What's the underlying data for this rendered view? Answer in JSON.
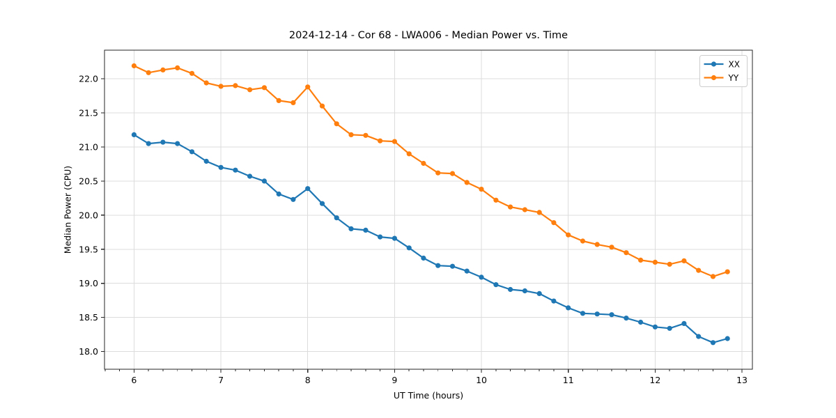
{
  "chart_data": {
    "type": "line",
    "title": "2024-12-14 - Cor 68 - LWA006 - Median Power vs. Time",
    "xlabel": "UT Time (hours)",
    "ylabel": "Median Power (CPU)",
    "xlim": [
      5.66,
      13.12
    ],
    "ylim": [
      17.74,
      22.42
    ],
    "x_major_ticks": [
      6,
      7,
      8,
      9,
      10,
      11,
      12,
      13
    ],
    "x_minor_step": 0.1667,
    "y_ticks": [
      18.0,
      18.5,
      19.0,
      19.5,
      20.0,
      20.5,
      21.0,
      21.5,
      22.0
    ],
    "grid": "major-only",
    "legend_position": "upper right",
    "x": [
      6.0,
      6.167,
      6.333,
      6.5,
      6.667,
      6.833,
      7.0,
      7.167,
      7.333,
      7.5,
      7.667,
      7.833,
      8.0,
      8.167,
      8.333,
      8.5,
      8.667,
      8.833,
      9.0,
      9.167,
      9.333,
      9.5,
      9.667,
      9.833,
      10.0,
      10.167,
      10.333,
      10.5,
      10.667,
      10.833,
      11.0,
      11.167,
      11.333,
      11.5,
      11.667,
      11.833,
      12.0,
      12.167,
      12.333,
      12.5,
      12.667,
      12.833
    ],
    "series": [
      {
        "name": "XX",
        "color": "#1f77b4",
        "values": [
          21.18,
          21.05,
          21.07,
          21.05,
          20.93,
          20.79,
          20.7,
          20.66,
          20.57,
          20.5,
          20.31,
          20.23,
          20.39,
          20.17,
          19.96,
          19.8,
          19.78,
          19.68,
          19.66,
          19.52,
          19.37,
          19.26,
          19.25,
          19.18,
          19.09,
          18.98,
          18.91,
          18.89,
          18.85,
          18.74,
          18.64,
          18.56,
          18.55,
          18.54,
          18.49,
          18.43,
          18.36,
          18.34,
          18.41,
          18.22,
          18.13,
          18.19
        ]
      },
      {
        "name": "YY",
        "color": "#ff7f0e",
        "values": [
          22.19,
          22.09,
          22.13,
          22.16,
          22.08,
          21.94,
          21.89,
          21.9,
          21.84,
          21.87,
          21.68,
          21.65,
          21.88,
          21.6,
          21.34,
          21.18,
          21.17,
          21.09,
          21.08,
          20.9,
          20.76,
          20.62,
          20.61,
          20.48,
          20.38,
          20.22,
          20.12,
          20.08,
          20.04,
          19.89,
          19.71,
          19.62,
          19.57,
          19.53,
          19.45,
          19.34,
          19.31,
          19.28,
          19.33,
          19.19,
          19.1,
          19.17
        ]
      }
    ],
    "colors": {
      "grid": "#dcdcdc",
      "spine": "#262626",
      "tick": "#262626",
      "text": "#000000",
      "background": "#ffffff",
      "legend_border": "#cccccc"
    }
  }
}
